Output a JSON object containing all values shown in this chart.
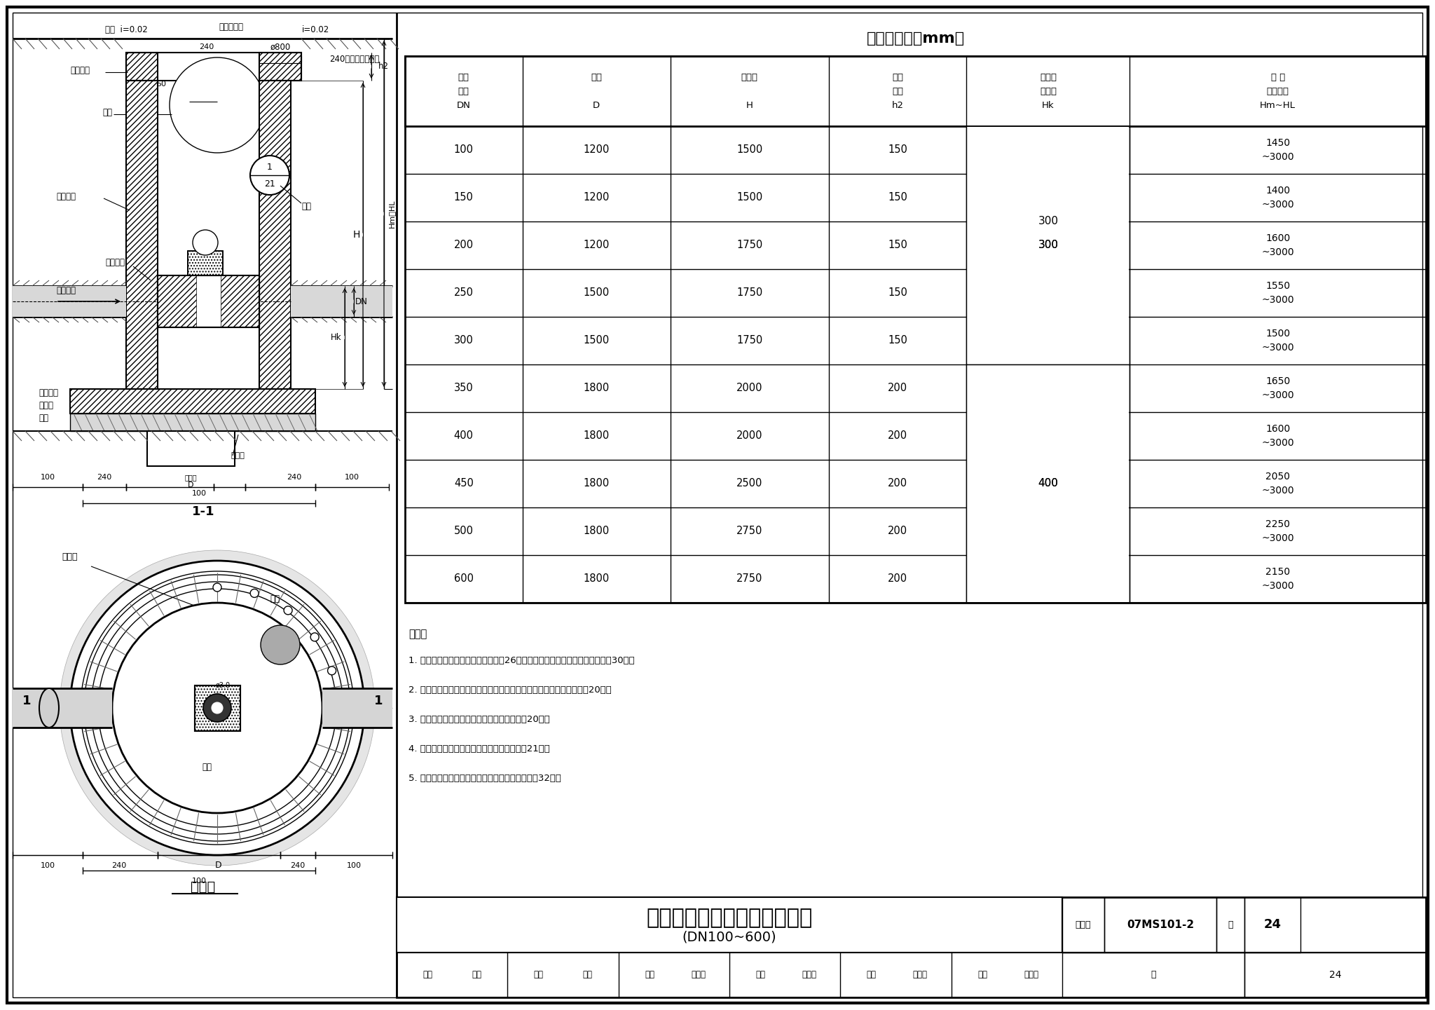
{
  "title": "地面操作砖砌圆形立式蝶阀井",
  "subtitle": "(DN100~600)",
  "figure_number": "07MS101-2",
  "page": "24",
  "table_title": "各部尺寸表（mm）",
  "table_headers": [
    "螺阀\n直径\nDN",
    "井径\n\nD",
    "井室深\n\nH",
    "盖板\n厚度\nh2",
    "管底距\n井底深\nHk",
    "管 顶\n覆土深度\nHm~HL"
  ],
  "table_data": [
    [
      "100",
      "1200",
      "1500",
      "150",
      "",
      "1450\n~3000"
    ],
    [
      "150",
      "1200",
      "1500",
      "150",
      "",
      "1400\n~3000"
    ],
    [
      "200",
      "1200",
      "1750",
      "150",
      "300",
      "1600\n~3000"
    ],
    [
      "250",
      "1500",
      "1750",
      "150",
      "",
      "1550\n~3000"
    ],
    [
      "300",
      "1500",
      "1750",
      "150",
      "",
      "1500\n~3000"
    ],
    [
      "350",
      "1800",
      "2000",
      "200",
      "",
      "1650\n~3000"
    ],
    [
      "400",
      "1800",
      "2000",
      "200",
      "",
      "1600\n~3000"
    ],
    [
      "450",
      "1800",
      "2500",
      "200",
      "400",
      "2050\n~3000"
    ],
    [
      "500",
      "1800",
      "2750",
      "200",
      "",
      "2250\n~3000"
    ],
    [
      "600",
      "1800",
      "2750",
      "200",
      "",
      "2150\n~3000"
    ]
  ],
  "notes": [
    "说明：",
    "1. 钢筋混凝土盖板配筋图见本图集第26页，钢筋混凝土底板配筋图见本图集第30页。",
    "2. 管道穿砖砌井壁留洞尺寸见管道穿砖砌井壁留洞尺寸表，见本图集第20页。",
    "3. 管道穿砖砌井壁做法及砖拱做法见本图集第20页。",
    "4. 集水坑、井盖及支座、踏步做法见本图集第21页。",
    "5. 砖砌圆形立式蝶阀井主要材料汇总表见本图集第32页。"
  ],
  "staff_row": [
    "审核",
    "曹激",
    "设计",
    "冰液",
    "校对",
    "马连懿",
    "校审",
    "沁远魁",
    "设计",
    "姚光石",
    "姓名",
    "妲乡而"
  ],
  "fig_num_label": "图集号",
  "page_label": "页",
  "bg_color": "#ffffff"
}
